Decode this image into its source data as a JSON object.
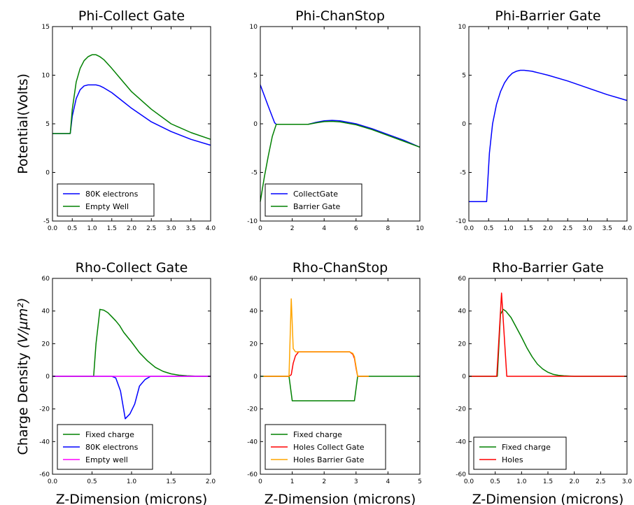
{
  "chart_data": [
    {
      "type": "line",
      "title": "Phi-Collect Gate",
      "ylabel": "Potential(Volts)",
      "xlabel": "",
      "xlim": [
        0,
        4
      ],
      "ylim": [
        -5,
        15
      ],
      "xticks": [
        "0.0",
        "0.5",
        "1.0",
        "1.5",
        "2.0",
        "2.5",
        "3.0",
        "3.5",
        "4.0"
      ],
      "yticks": [
        "-5",
        "0",
        "5",
        "10",
        "15"
      ],
      "legend": "lower-left",
      "series": [
        {
          "name": "80K electrons",
          "color": "#0000ff",
          "x": [
            0,
            0.45,
            0.5,
            0.6,
            0.7,
            0.8,
            0.9,
            1.0,
            1.1,
            1.2,
            1.3,
            1.5,
            1.75,
            2.0,
            2.5,
            3.0,
            3.5,
            4.0
          ],
          "y": [
            4,
            4,
            5.8,
            7.6,
            8.5,
            8.9,
            9.0,
            9.0,
            9.0,
            8.9,
            8.7,
            8.2,
            7.4,
            6.6,
            5.2,
            4.2,
            3.4,
            2.8
          ]
        },
        {
          "name": "Empty Well",
          "color": "#008000",
          "x": [
            0,
            0.45,
            0.5,
            0.6,
            0.7,
            0.8,
            0.9,
            1.0,
            1.1,
            1.2,
            1.3,
            1.5,
            1.75,
            2.0,
            2.5,
            3.0,
            3.5,
            4.0
          ],
          "y": [
            4,
            4,
            6.5,
            9.3,
            10.7,
            11.5,
            11.9,
            12.1,
            12.1,
            11.9,
            11.6,
            10.7,
            9.5,
            8.3,
            6.5,
            5.0,
            4.1,
            3.4
          ]
        }
      ]
    },
    {
      "type": "line",
      "title": "Phi-ChanStop",
      "ylabel": "",
      "xlabel": "",
      "xlim": [
        0,
        10
      ],
      "ylim": [
        -10,
        10
      ],
      "xticks": [
        "0",
        "2",
        "4",
        "6",
        "8",
        "10"
      ],
      "yticks": [
        "-10",
        "-5",
        "0",
        "5",
        "10"
      ],
      "legend": "lower-left",
      "series": [
        {
          "name": "CollectGate",
          "color": "#0000ff",
          "x": [
            0,
            0.5,
            0.9,
            1.0,
            2.0,
            3.0,
            3.5,
            4.0,
            4.5,
            5.0,
            6.0,
            7.0,
            8.0,
            9.0,
            10.0
          ],
          "y": [
            4,
            1.8,
            0.1,
            -0.05,
            -0.05,
            -0.05,
            0.15,
            0.3,
            0.35,
            0.3,
            0,
            -0.5,
            -1.1,
            -1.7,
            -2.4
          ]
        },
        {
          "name": "Barrier Gate",
          "color": "#008000",
          "x": [
            0,
            0.25,
            0.5,
            0.75,
            1.0,
            2.0,
            3.0,
            3.5,
            4.0,
            4.5,
            5.0,
            6.0,
            7.0,
            8.0,
            9.0,
            10.0
          ],
          "y": [
            -8,
            -5.5,
            -3.3,
            -1.3,
            -0.05,
            -0.05,
            -0.05,
            0.1,
            0.22,
            0.25,
            0.2,
            -0.1,
            -0.6,
            -1.2,
            -1.8,
            -2.4
          ]
        }
      ]
    },
    {
      "type": "line",
      "title": "Phi-Barrier Gate",
      "ylabel": "",
      "xlabel": "",
      "xlim": [
        0,
        4
      ],
      "ylim": [
        -10,
        10
      ],
      "xticks": [
        "0.0",
        "0.5",
        "1.0",
        "1.5",
        "2.0",
        "2.5",
        "3.0",
        "3.5",
        "4.0"
      ],
      "yticks": [
        "-10",
        "-5",
        "0",
        "5",
        "10"
      ],
      "legend": "none",
      "series": [
        {
          "name": "",
          "color": "#0000ff",
          "x": [
            0,
            0.45,
            0.52,
            0.6,
            0.7,
            0.8,
            0.9,
            1.0,
            1.1,
            1.2,
            1.3,
            1.4,
            1.6,
            1.8,
            2.0,
            2.5,
            3.0,
            3.5,
            4.0
          ],
          "y": [
            -8,
            -8,
            -3,
            0,
            2,
            3.3,
            4.2,
            4.8,
            5.2,
            5.4,
            5.5,
            5.5,
            5.4,
            5.2,
            5.0,
            4.4,
            3.7,
            3.0,
            2.4
          ]
        }
      ]
    },
    {
      "type": "line",
      "title": "Rho-Collect Gate",
      "ylabel": "Charge Density",
      "ylabel_math": "(V/µm²)",
      "xlabel": "Z-Dimension (microns)",
      "xlim": [
        0,
        2
      ],
      "ylim": [
        -60,
        60
      ],
      "xticks": [
        "0.0",
        "0.5",
        "1.0",
        "1.5",
        "2.0"
      ],
      "yticks": [
        "-60",
        "-40",
        "-20",
        "0",
        "20",
        "40",
        "60"
      ],
      "legend": "lower-left",
      "series": [
        {
          "name": "Fixed charge",
          "color": "#008000",
          "x": [
            0,
            0.52,
            0.55,
            0.6,
            0.65,
            0.7,
            0.75,
            0.8,
            0.85,
            0.9,
            1.0,
            1.1,
            1.2,
            1.3,
            1.4,
            1.5,
            1.6,
            1.7,
            1.8,
            2.0
          ],
          "y": [
            0,
            0,
            20,
            41,
            40.5,
            39,
            36.5,
            34,
            31,
            27,
            21,
            14.5,
            9.5,
            5.5,
            3,
            1.5,
            0.7,
            0.3,
            0.1,
            0
          ]
        },
        {
          "name": "80K electrons",
          "color": "#0000ff",
          "x": [
            0,
            0.75,
            0.8,
            0.86,
            0.92,
            0.98,
            1.04,
            1.1,
            1.17,
            1.24,
            2.0
          ],
          "y": [
            0,
            0,
            -1,
            -9,
            -26,
            -23,
            -17,
            -6,
            -2,
            0,
            0
          ]
        },
        {
          "name": "Empty well",
          "color": "#ff00ff",
          "x": [
            0,
            2
          ],
          "y": [
            0,
            0
          ]
        }
      ]
    },
    {
      "type": "line",
      "title": "Rho-ChanStop",
      "ylabel": "",
      "xlabel": "Z-Dimension (microns)",
      "xlim": [
        0,
        5
      ],
      "ylim": [
        -60,
        60
      ],
      "xticks": [
        "0",
        "1",
        "2",
        "3",
        "4",
        "5"
      ],
      "yticks": [
        "-60",
        "-40",
        "-20",
        "0",
        "20",
        "40",
        "60"
      ],
      "legend": "lower-left",
      "series": [
        {
          "name": "Fixed charge",
          "color": "#008000",
          "x": [
            0,
            0.9,
            1.0,
            2.0,
            2.95,
            3.05,
            5.0
          ],
          "y": [
            0,
            0,
            -15,
            -15,
            -15,
            0,
            0
          ]
        },
        {
          "name": "Holes Collect Gate",
          "color": "#ff0000",
          "x": [
            0.1,
            0.9,
            0.97,
            1.03,
            1.1,
            1.2,
            2.0,
            2.8,
            2.9,
            2.95,
            3.0,
            3.05,
            3.4
          ],
          "y": [
            0,
            0,
            1,
            8,
            12.5,
            15,
            15,
            15,
            13.5,
            11,
            5,
            0,
            0
          ]
        },
        {
          "name": "Holes Barrier Gate",
          "color": "#ffa500",
          "x": [
            0.1,
            0.9,
            0.97,
            1.03,
            1.1,
            1.2,
            2.0,
            2.8,
            2.9,
            2.95,
            3.0,
            3.05,
            3.4
          ],
          "y": [
            0,
            0,
            47.5,
            17,
            15,
            15,
            15,
            15,
            14,
            12,
            6,
            0,
            0
          ]
        }
      ]
    },
    {
      "type": "line",
      "title": "Rho-Barrier Gate",
      "ylabel": "",
      "xlabel": "Z-Dimension (microns)",
      "xlim": [
        0,
        3
      ],
      "ylim": [
        -60,
        60
      ],
      "xticks": [
        "0.0",
        "0.5",
        "1.0",
        "1.5",
        "2.0",
        "2.5",
        "3.0"
      ],
      "yticks": [
        "-60",
        "-40",
        "-20",
        "0",
        "20",
        "40",
        "60"
      ],
      "legend": "lower-left",
      "series": [
        {
          "name": "Fixed charge",
          "color": "#008000",
          "x": [
            0,
            0.54,
            0.6,
            0.65,
            0.7,
            0.8,
            0.9,
            1.0,
            1.1,
            1.2,
            1.3,
            1.4,
            1.5,
            1.6,
            1.7,
            1.8,
            2.0,
            3.0
          ],
          "y": [
            0,
            0,
            38,
            41,
            40,
            36,
            30,
            24,
            17.5,
            12,
            7.5,
            4.5,
            2.5,
            1.2,
            0.6,
            0.3,
            0,
            0
          ]
        },
        {
          "name": "Holes",
          "color": "#ff0000",
          "x": [
            0,
            0.53,
            0.62,
            0.72,
            3.0
          ],
          "y": [
            0,
            0,
            51,
            0,
            0
          ]
        }
      ]
    }
  ]
}
